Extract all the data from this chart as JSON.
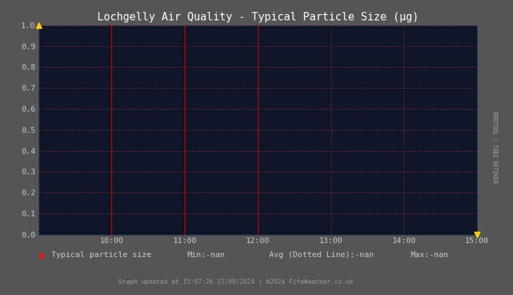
{
  "title": "Lochgelly Air Quality - Typical Particle Size (μg)",
  "bg_color": "#0d1526",
  "outer_bg": "#555555",
  "grid_color": "#cc3333",
  "grid_linestyle": ":",
  "ylim": [
    0.0,
    1.0
  ],
  "yticks": [
    0.0,
    0.1,
    0.2,
    0.3,
    0.4,
    0.5,
    0.6,
    0.7,
    0.8,
    0.9,
    1.0
  ],
  "xlim_hours": [
    9.0,
    15.0
  ],
  "xtick_hours": [
    10.0,
    11.0,
    12.0,
    13.0,
    14.0,
    15.0
  ],
  "xtick_labels": [
    "10:00",
    "11:00",
    "12:00",
    "13:00",
    "14:00",
    "15:00"
  ],
  "vline_hours": [
    10.0,
    11.0,
    12.0
  ],
  "vline_color": "#cc0000",
  "title_color": "#ffffff",
  "title_fontsize": 11,
  "tick_color": "#cccccc",
  "tick_fontsize": 8,
  "legend_label": "Typical particle size",
  "legend_color": "#cc2222",
  "min_label": "Min:-nan",
  "avg_label": "Avg (Dotted Line):-nan",
  "max_label": "Max:-nan",
  "footer_text": "Graph updated at 15:07:26 17/08/2024 | ©2024 FifeWeather.co.uk",
  "sidebar_text": "RRDTOOL / TOBI OETIKER",
  "sidebar_color": "#aaaaaa",
  "arrow_color": "#ffcc00",
  "spine_color": "#444466"
}
